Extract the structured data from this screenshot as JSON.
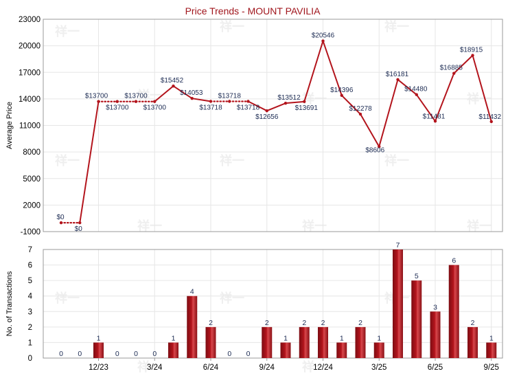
{
  "chart_data": [
    {
      "type": "line",
      "title": "Price Trends - MOUNT PAVILIA",
      "ylabel": "Average Price",
      "ylim": [
        -1000,
        23000
      ],
      "yticks": [
        "23000",
        "20000",
        "17000",
        "14000",
        "11000",
        "8000",
        "5000",
        "2000",
        "-1000"
      ],
      "grid": true,
      "line_color": "#b3141c",
      "series": [
        {
          "points": [
            {
              "x": 0,
              "y": 0,
              "label": "$0"
            },
            {
              "x": 1,
              "y": 0,
              "label": "$0"
            },
            {
              "x": 2,
              "y": 13700,
              "label": "$13700"
            },
            {
              "x": 3,
              "y": 13700,
              "label": "$13700"
            },
            {
              "x": 4,
              "y": 13700,
              "label": "$13700"
            },
            {
              "x": 5,
              "y": 13700,
              "label": "$13700"
            },
            {
              "x": 6,
              "y": 15452,
              "label": "$15452"
            },
            {
              "x": 7,
              "y": 14053,
              "label": "$14053"
            },
            {
              "x": 8,
              "y": 13718,
              "label": "$13718"
            },
            {
              "x": 9,
              "y": 13718,
              "label": "$13718"
            },
            {
              "x": 10,
              "y": 13718,
              "label": "$13718"
            },
            {
              "x": 11,
              "y": 12656,
              "label": "$12656"
            },
            {
              "x": 12,
              "y": 13512,
              "label": "$13512"
            },
            {
              "x": 13,
              "y": 13691,
              "label": "$13691"
            },
            {
              "x": 14,
              "y": 20546,
              "label": "$20546"
            },
            {
              "x": 15,
              "y": 14396,
              "label": "$14396"
            },
            {
              "x": 16,
              "y": 12278,
              "label": "$12278"
            },
            {
              "x": 17,
              "y": 8606,
              "label": "$8606"
            },
            {
              "x": 18,
              "y": 16181,
              "label": "$16181"
            },
            {
              "x": 19,
              "y": 14480,
              "label": "$14480"
            },
            {
              "x": 20,
              "y": 11481,
              "label": "$11481"
            },
            {
              "x": 21,
              "y": 16885,
              "label": "$16885"
            },
            {
              "x": 22,
              "y": 18915,
              "label": "$18915"
            },
            {
              "x": 23,
              "y": 11432,
              "label": "$11432"
            }
          ]
        }
      ],
      "dotted_spans": [
        [
          0,
          1
        ],
        [
          2,
          5
        ],
        [
          8,
          10
        ]
      ]
    },
    {
      "type": "bar",
      "ylabel": "No. of Transactions",
      "ylim": [
        0,
        7
      ],
      "yticks": [
        "7",
        "6",
        "5",
        "4",
        "3",
        "2",
        "1",
        "0"
      ],
      "bar_color": "#b3141c",
      "x_tick_labels": [
        {
          "x": 2,
          "label": "12/23"
        },
        {
          "x": 5,
          "label": "3/24"
        },
        {
          "x": 8,
          "label": "6/24"
        },
        {
          "x": 11,
          "label": "9/24"
        },
        {
          "x": 14,
          "label": "12/24"
        },
        {
          "x": 17,
          "label": "3/25"
        },
        {
          "x": 20,
          "label": "6/25"
        },
        {
          "x": 23,
          "label": "9/25"
        }
      ],
      "values": [
        0,
        0,
        1,
        0,
        0,
        0,
        1,
        4,
        2,
        0,
        0,
        2,
        1,
        2,
        2,
        1,
        2,
        1,
        7,
        5,
        3,
        6,
        2,
        1
      ]
    }
  ],
  "watermark": "祥一"
}
